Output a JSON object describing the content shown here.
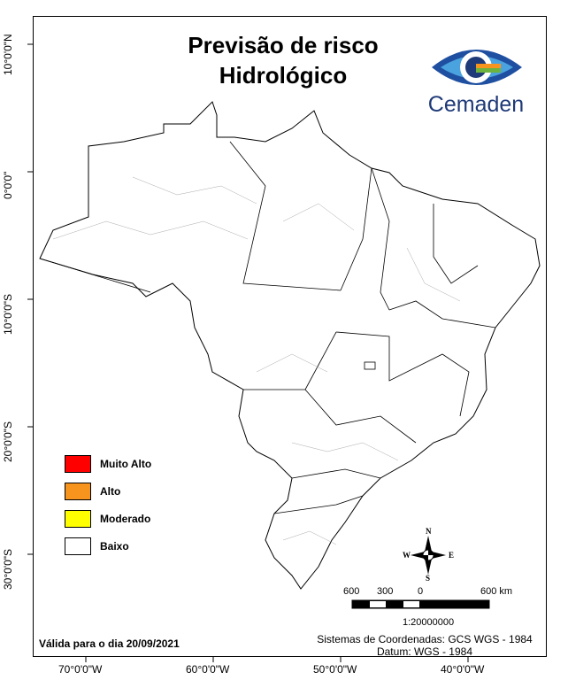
{
  "title": {
    "line1": "Previsão de risco",
    "line2": "Hidrológico"
  },
  "logo": {
    "text": "Cemaden"
  },
  "lat_labels": [
    "10°0'0\"N",
    "0°0'0\"",
    "10°0'0\"S",
    "20°0'0\"S",
    "30°0'0\"S"
  ],
  "lon_labels": [
    "70°0'0\"W",
    "60°0'0\"W",
    "50°0'0\"W",
    "40°0'0\"W"
  ],
  "legend": [
    {
      "label": "Muito Alto",
      "color": "#ff0000"
    },
    {
      "label": "Alto",
      "color": "#f7941d"
    },
    {
      "label": "Moderado",
      "color": "#ffff00"
    },
    {
      "label": "Baixo",
      "color": "#ffffff"
    }
  ],
  "compass": {
    "n": "N",
    "s": "S",
    "e": "E",
    "w": "W"
  },
  "scale": {
    "l1": "600",
    "l2": "300",
    "l3": "0",
    "l4": "600 km",
    "ratio": "1:20000000"
  },
  "footer": {
    "date": "Válida para o dia 20/09/2021",
    "coords": "Sistemas de Coordenadas: GCS WGS - 1984",
    "datum": "Datum: WGS - 1984"
  }
}
